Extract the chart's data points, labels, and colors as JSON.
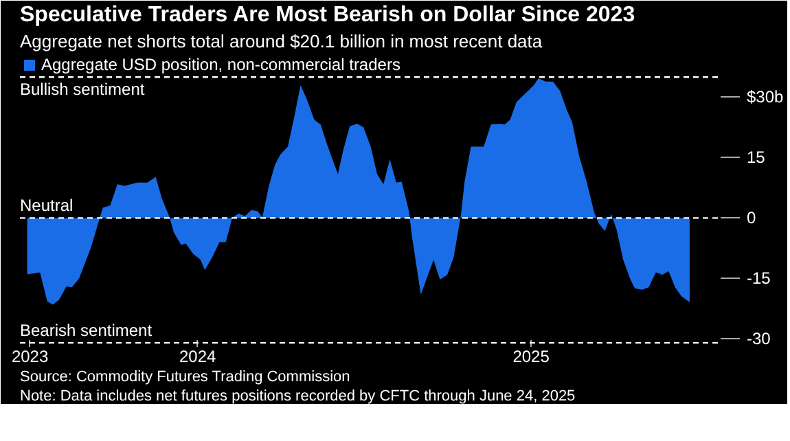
{
  "chart_data": {
    "type": "area",
    "title": "Speculative Traders Are Most Bearish on Dollar Since 2023",
    "subtitle": "Aggregate net shorts total around $20.1 billion in most recent data",
    "x": [
      "2023-06-28",
      "2023-07-12",
      "2023-07-20",
      "2023-07-26",
      "2023-08-02",
      "2023-08-10",
      "2023-08-16",
      "2023-08-24",
      "2023-09-06",
      "2023-09-19",
      "2023-09-27",
      "2023-10-05",
      "2023-10-13",
      "2023-10-27",
      "2023-11-07",
      "2023-11-16",
      "2023-11-23",
      "2023-12-01",
      "2023-12-06",
      "2023-12-14",
      "2023-12-19",
      "2023-12-27",
      "2024-01-04",
      "2024-01-09",
      "2024-01-17",
      "2024-01-25",
      "2024-02-01",
      "2024-02-08",
      "2024-02-15",
      "2024-02-22",
      "2024-02-29",
      "2024-03-07",
      "2024-03-12",
      "2024-03-19",
      "2024-03-26",
      "2024-04-01",
      "2024-04-09",
      "2024-04-16",
      "2024-04-23",
      "2024-04-30",
      "2024-05-08",
      "2024-05-15",
      "2024-05-22",
      "2024-06-03",
      "2024-06-09",
      "2024-06-16",
      "2024-06-24",
      "2024-07-01",
      "2024-07-09",
      "2024-07-16",
      "2024-07-23",
      "2024-07-30",
      "2024-08-06",
      "2024-08-12",
      "2024-08-20",
      "2024-08-23",
      "2024-09-02",
      "2024-09-08",
      "2024-09-16",
      "2024-09-23",
      "2024-10-01",
      "2024-10-08",
      "2024-10-16",
      "2024-10-20",
      "2024-10-27",
      "2024-11-10",
      "2024-11-18",
      "2024-11-27",
      "2024-12-03",
      "2024-12-09",
      "2024-12-16",
      "2024-12-27",
      "2025-01-04",
      "2025-01-09",
      "2025-01-17",
      "2025-01-25",
      "2025-02-02",
      "2025-02-09",
      "2025-02-15",
      "2025-02-23",
      "2025-03-03",
      "2025-03-11",
      "2025-03-16",
      "2025-03-23",
      "2025-03-30",
      "2025-04-05",
      "2025-04-12",
      "2025-04-20",
      "2025-04-25",
      "2025-05-03",
      "2025-05-10",
      "2025-05-18",
      "2025-05-25",
      "2025-06-01",
      "2025-06-08",
      "2025-06-15",
      "2025-06-24"
    ],
    "series": [
      {
        "name": "Aggregate USD position, non-commercial traders",
        "color": "#1a6de6",
        "values": [
          -14,
          -13.5,
          -20.7,
          -21.5,
          -20.3,
          -17,
          -17.2,
          -15,
          -7.3,
          2.6,
          3.1,
          8.4,
          8,
          8.8,
          8.8,
          10.2,
          4.7,
          0.3,
          -3.6,
          -6.7,
          -6.3,
          -8.9,
          -10.3,
          -12.9,
          -9.8,
          -6,
          -6,
          0.1,
          1.1,
          0.5,
          2,
          1.7,
          0.1,
          7.8,
          13.3,
          15.8,
          17.7,
          25,
          33,
          29.4,
          24.4,
          23.2,
          18.3,
          10.9,
          17,
          22.8,
          23.4,
          22.6,
          17.7,
          10.9,
          8.4,
          14.6,
          8.8,
          9,
          1.6,
          -4.2,
          -19,
          -15.3,
          -10.4,
          -15.3,
          -14.1,
          -9.8,
          0.7,
          9,
          17.7,
          17.7,
          23.2,
          23.4,
          23.2,
          24.4,
          28.8,
          31.2,
          33,
          34.7,
          33.9,
          33.9,
          31.5,
          26.9,
          23.8,
          15.2,
          9,
          1.6,
          -1.3,
          -3.2,
          1,
          -3,
          -10.3,
          -15.3,
          -17.5,
          -17.8,
          -17.2,
          -13.5,
          -14.1,
          -13.2,
          -17.2,
          -19.4,
          -20.9
        ]
      }
    ],
    "xlim": [
      "2023-06-20",
      "2025-07-28"
    ],
    "xticks": [
      {
        "value": "2023-07-01",
        "label": "2023"
      },
      {
        "value": "2024-01-01",
        "label": "2024"
      },
      {
        "value": "2025-01-01",
        "label": "2025"
      }
    ],
    "ylim": [
      -32,
      41
    ],
    "yticks": [
      {
        "value": 30,
        "label": "$30b"
      },
      15,
      0,
      -15,
      -30
    ],
    "ref_lines": [
      {
        "axis": "y",
        "value": 35,
        "label": "Bullish sentiment",
        "color": "#ffffff",
        "line_style": "dashed"
      },
      {
        "axis": "y",
        "value": 0,
        "label": "Neutral",
        "color": "#ffffff",
        "line_style": "dashed"
      },
      {
        "axis": "y",
        "value": -31,
        "label": "Bearish sentiment",
        "color": "#ffffff",
        "line_style": "dashed"
      }
    ],
    "annotations": [
      "Source: Commodity Futures Trading Commission",
      "Note: Data includes net futures positions recorded by CFTC through June 24, 2025"
    ],
    "grid": false,
    "legend": "top left"
  }
}
